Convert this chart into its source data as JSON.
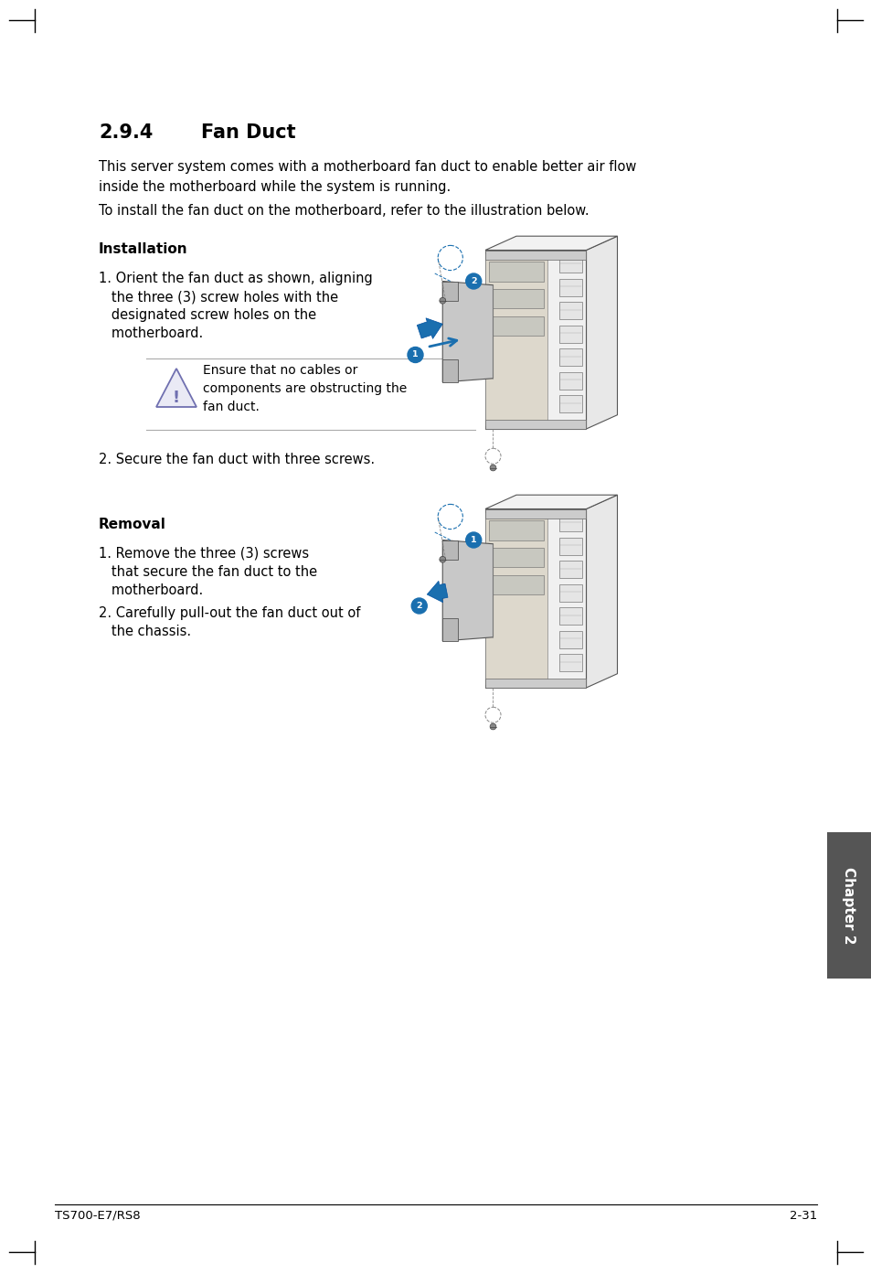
{
  "page_bg": "#ffffff",
  "text_color": "#000000",
  "accent_color": "#1a6faf",
  "accent_color2": "#2980b9",
  "section_title_num": "2.9.4",
  "section_title_text": "Fan Duct",
  "body_text_1a": "This server system comes with a motherboard fan duct to enable better air flow",
  "body_text_1b": "inside the motherboard while the system is running.",
  "body_text_2": "To install the fan duct on the motherboard, refer to the illustration below.",
  "install_heading": "Installation",
  "install_step1_line1": "1. Orient the fan duct as shown, aligning",
  "install_step1_line2": "   the three (3) screw holes with the",
  "install_step1_line3": "   designated screw holes on the",
  "install_step1_line4": "   motherboard.",
  "warning_text": "Ensure that no cables or\ncomponents are obstructing the\nfan duct.",
  "install_step2": "2. Secure the fan duct with three screws.",
  "removal_heading": "Removal",
  "removal_step1_line1": "1. Remove the three (3) screws",
  "removal_step1_line2": "   that secure the fan duct to the",
  "removal_step1_line3": "   motherboard.",
  "removal_step2_line1": "2. Carefully pull-out the fan duct out of",
  "removal_step2_line2": "   the chassis.",
  "footer_left": "TS700-E7/RS8",
  "footer_right": "2-31",
  "chapter_label": "Chapter 2",
  "chapter_tab_color": "#555555",
  "chassis_body_color": "#f0f0f0",
  "chassis_edge_color": "#555555",
  "chassis_inner_color": "#e0e0e0",
  "duct_color": "#d0d0d0",
  "duct_edge": "#666666"
}
